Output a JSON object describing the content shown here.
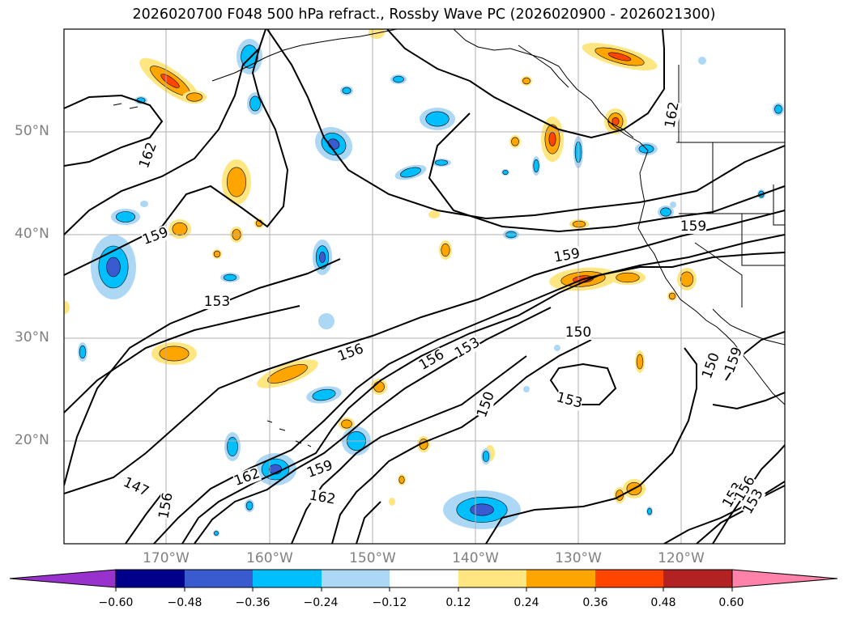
{
  "title": "2026020700 F048 500 hPa refract., Rossby Wave PC (2026020900 - 2026021300)",
  "lat_labels": [
    "50°N",
    "40°N",
    "30°N",
    "20°N"
  ],
  "lon_labels": [
    "170°W",
    "160°W",
    "150°W",
    "140°W",
    "130°W",
    "120°W"
  ],
  "contour_labels": [
    "162",
    "159",
    "153",
    "156",
    "150",
    "147",
    "162",
    "159",
    "162",
    "150",
    "153",
    "156",
    "153",
    "150",
    "159",
    "153",
    "156",
    "153",
    "156",
    "159",
    "162",
    "159"
  ],
  "colorbar": {
    "ticks": [
      "−0.60",
      "−0.48",
      "−0.36",
      "−0.24",
      "−0.12",
      "0.12",
      "0.24",
      "0.36",
      "0.48",
      "0.60"
    ],
    "colors": [
      "#9932cc",
      "#00008b",
      "#3a5bd0",
      "#00bfff",
      "#add8f5",
      "#ffffff",
      "#ffe680",
      "#ffa500",
      "#ff4500",
      "#b22222",
      "#ff82ab"
    ]
  },
  "colors": {
    "coast": "#000000",
    "grid": "#b0b0b0",
    "contour": "#000000"
  }
}
